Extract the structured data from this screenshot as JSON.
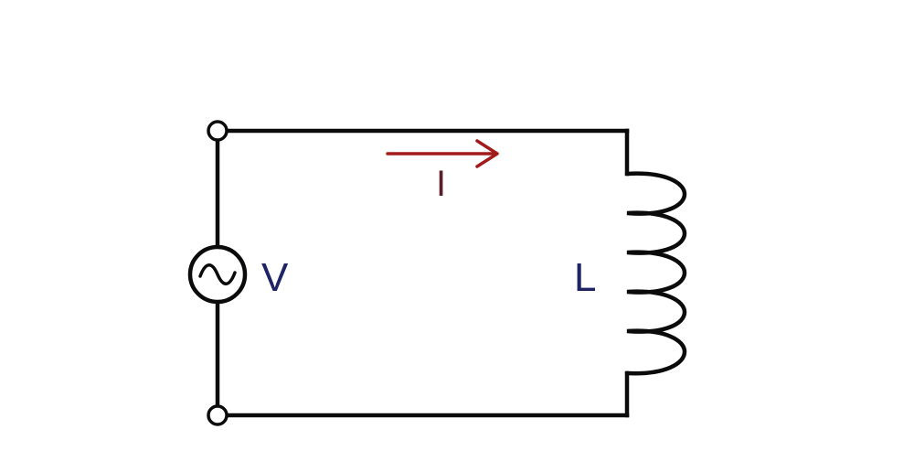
{
  "diagram": {
    "source_label": "V",
    "inductor_label": "L",
    "current_label": "I",
    "colors": {
      "wire": "#0b0b0b",
      "label": "#1e2366",
      "current": "#a31a1a",
      "background": "#ffffff"
    },
    "icons": {
      "source": "ac-source-icon",
      "inductor": "inductor-coil-icon",
      "current_arrow": "arrow-right-icon"
    }
  }
}
